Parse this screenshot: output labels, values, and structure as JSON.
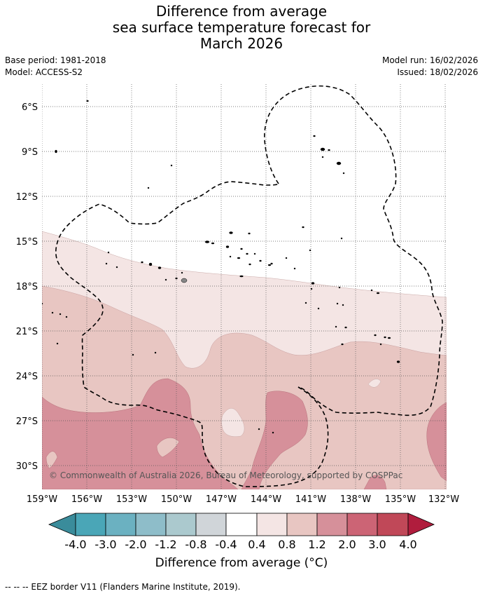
{
  "header": {
    "title_line1": "Difference from average",
    "title_line2": "sea surface temperature forecast for",
    "title_line3": "March 2026",
    "base_period": "Base period: 1981-2018",
    "model": "Model: ACCESS-S2",
    "model_run": "Model run: 16/02/2026",
    "issued": "Issued: 18/02/2026"
  },
  "map": {
    "lat_labels": [
      "6°S",
      "9°S",
      "12°S",
      "15°S",
      "18°S",
      "21°S",
      "24°S",
      "27°S",
      "30°S"
    ],
    "lon_labels": [
      "159°W",
      "156°W",
      "153°W",
      "150°W",
      "147°W",
      "144°W",
      "141°W",
      "138°W",
      "135°W",
      "132°W"
    ],
    "copyright": "© Commonwealth of Australia 2026, Bureau of Meteorology, supported by COSPPac",
    "gridlines": true
  },
  "colorbar": {
    "labels": [
      "-4.0",
      "-3.0",
      "-2.0",
      "-1.2",
      "-0.8",
      "-0.4",
      "0.4",
      "0.8",
      "1.2",
      "2.0",
      "3.0",
      "4.0"
    ],
    "colors": [
      "#3a8c9b",
      "#4aa6b7",
      "#6bb1c1",
      "#8ebdc9",
      "#abc9ce",
      "#d0d5d9",
      "#ffffff",
      "#f4e5e4",
      "#e8c6c2",
      "#d6909a",
      "#cc6475",
      "#c04858",
      "#b01d3d"
    ],
    "title": "Difference from average (°C)"
  },
  "footnote": "--  --  -- EEZ border V11 (Flanders Marine Institute, 2019)."
}
